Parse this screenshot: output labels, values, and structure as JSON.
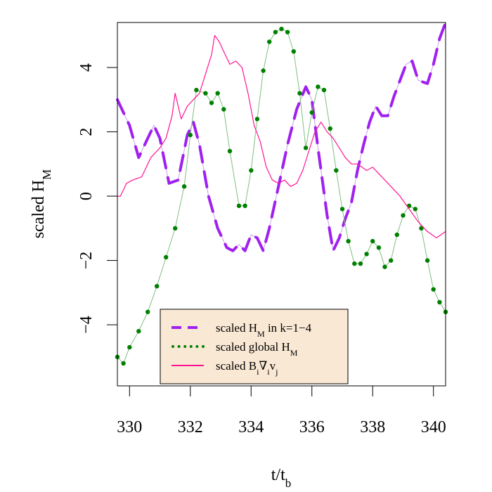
{
  "chart_data": {
    "type": "line",
    "xlabel": {
      "base": "t/t",
      "sub": "b"
    },
    "ylabel": {
      "base": "scaled H",
      "sub": "M"
    },
    "xlim": [
      329.6,
      340.4
    ],
    "ylim": [
      -5.9,
      5.4
    ],
    "x_ticks": [
      330,
      332,
      334,
      336,
      338,
      340
    ],
    "x_tick_labels": [
      "330",
      "332",
      "334",
      "336",
      "338",
      "340"
    ],
    "y_ticks": [
      -4,
      -2,
      0,
      2,
      4
    ],
    "y_tick_labels": [
      "−4",
      "−2",
      "0",
      "2",
      "4"
    ],
    "grid": false,
    "legend_position": "bottom-center",
    "legend_background": "#f9e8d4",
    "series": [
      {
        "name_parts": [
          {
            "text": "scaled H"
          },
          {
            "text": "M",
            "sub": true
          },
          {
            "text": " in k=1−4"
          }
        ],
        "color": "#a020f0",
        "style": "dashed",
        "x": [
          329.6,
          330.0,
          330.3,
          330.5,
          330.8,
          331.0,
          331.3,
          331.6,
          331.9,
          332.1,
          332.3,
          332.6,
          332.9,
          333.2,
          333.4,
          333.6,
          333.8,
          334.0,
          334.2,
          334.4,
          334.6,
          334.9,
          335.2,
          335.5,
          335.8,
          336.0,
          336.2,
          336.5,
          336.7,
          336.9,
          337.1,
          337.3,
          337.5,
          337.7,
          337.9,
          338.1,
          338.3,
          338.5,
          338.7,
          338.9,
          339.1,
          339.3,
          339.5,
          339.8,
          340.0,
          340.2,
          340.4
        ],
        "y": [
          3.0,
          2.2,
          1.2,
          1.6,
          2.2,
          1.8,
          0.4,
          0.5,
          1.9,
          2.3,
          1.6,
          0.0,
          -1.0,
          -1.6,
          -1.7,
          -1.5,
          -1.7,
          -1.2,
          -1.3,
          -1.7,
          -1.0,
          0.3,
          1.6,
          2.7,
          3.4,
          3.0,
          1.5,
          -0.6,
          -1.7,
          -1.3,
          -0.7,
          -0.2,
          0.8,
          1.6,
          2.3,
          2.8,
          2.5,
          2.5,
          3.1,
          3.6,
          4.1,
          4.2,
          3.6,
          3.5,
          4.1,
          4.9,
          5.4
        ]
      },
      {
        "name_parts": [
          {
            "text": "scaled global H"
          },
          {
            "text": "M",
            "sub": true
          }
        ],
        "color": "#008000",
        "style": "dotted",
        "x": [
          329.6,
          329.8,
          330.0,
          330.3,
          330.6,
          330.9,
          331.2,
          331.5,
          331.8,
          332.0,
          332.2,
          332.5,
          332.7,
          332.9,
          333.1,
          333.3,
          333.6,
          333.8,
          334.0,
          334.2,
          334.4,
          334.6,
          334.8,
          335.0,
          335.2,
          335.4,
          335.6,
          335.8,
          336.0,
          336.2,
          336.4,
          336.6,
          336.8,
          337.0,
          337.2,
          337.4,
          337.6,
          337.8,
          338.0,
          338.2,
          338.4,
          338.6,
          338.8,
          339.0,
          339.2,
          339.4,
          339.6,
          339.8,
          340.0,
          340.2,
          340.4
        ],
        "y": [
          -5.0,
          -5.2,
          -4.7,
          -4.2,
          -3.6,
          -2.8,
          -1.9,
          -1.0,
          0.3,
          1.9,
          3.3,
          3.2,
          2.9,
          3.2,
          2.7,
          1.4,
          -0.3,
          -0.3,
          0.8,
          2.4,
          3.9,
          4.8,
          5.1,
          5.2,
          5.1,
          4.5,
          3.2,
          1.5,
          2.6,
          3.4,
          3.3,
          2.1,
          0.8,
          -0.4,
          -1.4,
          -2.1,
          -2.1,
          -1.8,
          -1.4,
          -1.6,
          -2.2,
          -2.0,
          -1.2,
          -0.6,
          -0.3,
          -0.4,
          -1.0,
          -2.0,
          -2.9,
          -3.3,
          -3.6
        ]
      },
      {
        "name_parts": [
          {
            "text": "scaled B"
          },
          {
            "text": "i",
            "sub": true
          },
          {
            "text": "∇"
          },
          {
            "text": "i",
            "sub": true
          },
          {
            "text": "v"
          },
          {
            "text": "j",
            "sub": true
          }
        ],
        "color": "#ff1493",
        "style": "solid",
        "x": [
          329.6,
          329.7,
          329.9,
          330.1,
          330.4,
          330.7,
          331.0,
          331.2,
          331.4,
          331.5,
          331.7,
          331.9,
          332.1,
          332.3,
          332.5,
          332.7,
          332.8,
          332.95,
          333.1,
          333.3,
          333.5,
          333.7,
          333.9,
          334.1,
          334.3,
          334.5,
          334.7,
          334.9,
          335.1,
          335.3,
          335.5,
          335.7,
          335.9,
          336.1,
          336.3,
          336.5,
          336.7,
          336.9,
          337.1,
          337.3,
          337.5,
          337.8,
          338.0,
          338.3,
          338.6,
          338.9,
          339.2,
          339.5,
          339.8,
          340.1,
          340.4
        ],
        "y": [
          0.0,
          0.0,
          0.4,
          0.5,
          0.6,
          1.2,
          1.5,
          1.8,
          2.5,
          3.2,
          2.4,
          2.8,
          3.0,
          3.2,
          3.8,
          4.4,
          5.0,
          4.8,
          4.5,
          4.1,
          4.2,
          4.0,
          3.2,
          2.2,
          1.7,
          0.9,
          0.5,
          0.4,
          0.5,
          0.3,
          0.4,
          0.8,
          1.4,
          2.0,
          2.3,
          2.0,
          1.8,
          1.5,
          1.2,
          1.0,
          1.0,
          0.8,
          0.9,
          0.6,
          0.3,
          0.0,
          -0.4,
          -0.8,
          -1.1,
          -1.3,
          -1.1
        ]
      }
    ]
  }
}
